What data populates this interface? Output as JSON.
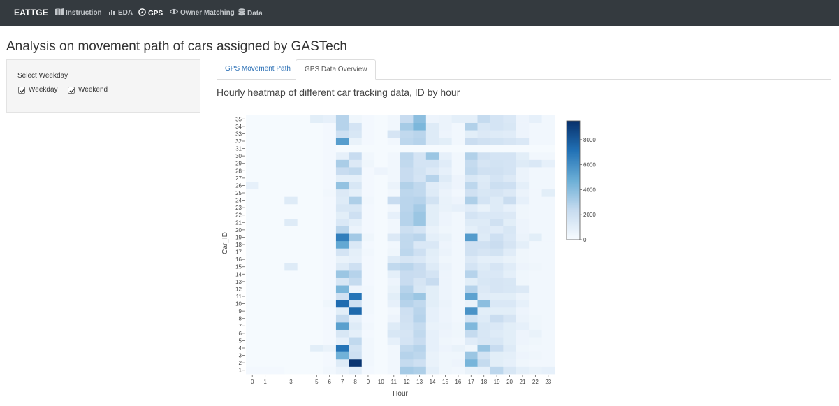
{
  "navbar": {
    "brand": "EATTGE",
    "items": [
      {
        "label": "Instruction",
        "icon": "map-icon",
        "active": false
      },
      {
        "label": "EDA",
        "icon": "chart-bar-icon",
        "active": false
      },
      {
        "label": "GPS",
        "icon": "compass-icon",
        "active": true
      },
      {
        "label": "Owner Matching",
        "icon": "eye-icon",
        "active": false
      },
      {
        "label": "Data",
        "icon": "database-icon",
        "active": false
      }
    ]
  },
  "page_title": "Analysis on movement path of cars assigned by GASTech",
  "sidebar": {
    "label": "Select Weekday",
    "checkboxes": [
      {
        "label": "Weekday",
        "checked": true
      },
      {
        "label": "Weekend",
        "checked": true
      }
    ]
  },
  "tabs": [
    {
      "label": "GPS Movement Path",
      "active": false
    },
    {
      "label": "GPS Data Overview",
      "active": true
    }
  ],
  "chart_data": {
    "type": "heatmap",
    "title": "Hourly heatmap of different car tracking data, ID by hour",
    "xlabel": "Hour",
    "ylabel": "Car_ID",
    "x": [
      0,
      1,
      2,
      3,
      4,
      5,
      6,
      7,
      8,
      9,
      10,
      11,
      12,
      13,
      14,
      15,
      16,
      17,
      18,
      19,
      20,
      21,
      22,
      23
    ],
    "x_ticks": [
      0,
      1,
      3,
      5,
      6,
      7,
      8,
      9,
      10,
      11,
      12,
      13,
      14,
      15,
      16,
      17,
      18,
      19,
      20,
      21,
      22,
      23
    ],
    "y": [
      1,
      2,
      3,
      4,
      5,
      6,
      7,
      8,
      9,
      10,
      11,
      12,
      13,
      14,
      15,
      16,
      17,
      18,
      19,
      20,
      21,
      22,
      23,
      24,
      25,
      26,
      27,
      28,
      29,
      30,
      31,
      32,
      33,
      34,
      35
    ],
    "zrange": [
      0,
      9500
    ],
    "colorbar_ticks": [
      0,
      2000,
      4000,
      6000,
      8000
    ],
    "colorscale": [
      "#f7fbff",
      "#c6dbef",
      "#6baed6",
      "#2171b5",
      "#08306b"
    ],
    "z": [
      [
        200,
        200,
        200,
        100,
        100,
        100,
        300,
        600,
        900,
        200,
        100,
        300,
        3200,
        3000,
        900,
        400,
        300,
        700,
        800,
        2600,
        1500,
        900,
        700,
        800
      ],
      [
        100,
        100,
        100,
        100,
        100,
        100,
        200,
        1200,
        9300,
        300,
        100,
        300,
        2400,
        2000,
        700,
        400,
        500,
        4400,
        2400,
        1000,
        800,
        400,
        300,
        300
      ],
      [
        100,
        100,
        100,
        100,
        100,
        100,
        200,
        4600,
        2000,
        300,
        100,
        300,
        2800,
        2600,
        700,
        400,
        400,
        3500,
        1800,
        1000,
        900,
        500,
        400,
        300
      ],
      [
        100,
        100,
        100,
        100,
        100,
        1000,
        700,
        7000,
        1800,
        300,
        100,
        300,
        2500,
        2800,
        800,
        500,
        700,
        400,
        3600,
        2300,
        1200,
        400,
        300,
        300
      ],
      [
        100,
        100,
        100,
        100,
        100,
        100,
        200,
        800,
        2500,
        300,
        100,
        800,
        1700,
        2300,
        800,
        400,
        300,
        1100,
        1500,
        1500,
        1000,
        500,
        400,
        300
      ],
      [
        100,
        100,
        100,
        100,
        100,
        100,
        200,
        1500,
        900,
        200,
        100,
        1500,
        1600,
        2500,
        800,
        500,
        400,
        2400,
        1500,
        1200,
        1000,
        500,
        700,
        300
      ],
      [
        100,
        100,
        100,
        100,
        100,
        100,
        200,
        5300,
        1200,
        300,
        100,
        1200,
        1800,
        2400,
        700,
        600,
        400,
        4200,
        1500,
        1400,
        1000,
        800,
        400,
        300
      ],
      [
        100,
        100,
        100,
        100,
        100,
        100,
        200,
        2400,
        800,
        200,
        100,
        500,
        1900,
        2800,
        800,
        500,
        300,
        1800,
        1200,
        2200,
        1600,
        600,
        400,
        300
      ],
      [
        100,
        100,
        100,
        100,
        100,
        100,
        200,
        1000,
        7400,
        300,
        100,
        300,
        2000,
        2700,
        800,
        500,
        300,
        5800,
        1000,
        1000,
        1000,
        500,
        300,
        300
      ],
      [
        100,
        100,
        100,
        100,
        100,
        100,
        400,
        7300,
        2000,
        300,
        100,
        800,
        2800,
        2500,
        1000,
        600,
        300,
        700,
        3900,
        1400,
        1400,
        800,
        300,
        300
      ],
      [
        100,
        100,
        100,
        100,
        100,
        100,
        200,
        1900,
        7000,
        300,
        100,
        1000,
        3100,
        3500,
        1000,
        500,
        300,
        5200,
        1100,
        1000,
        1000,
        600,
        300,
        300
      ],
      [
        100,
        100,
        100,
        100,
        100,
        100,
        200,
        4300,
        500,
        300,
        100,
        700,
        2800,
        1500,
        1000,
        500,
        300,
        2800,
        1300,
        1600,
        1500,
        1300,
        300,
        300
      ],
      [
        100,
        100,
        100,
        100,
        100,
        100,
        200,
        1500,
        2400,
        200,
        100,
        500,
        2300,
        1600,
        2300,
        500,
        300,
        1000,
        1500,
        1600,
        1500,
        400,
        300,
        300
      ],
      [
        100,
        100,
        100,
        100,
        100,
        100,
        200,
        3500,
        2800,
        200,
        100,
        900,
        2300,
        2200,
        1700,
        500,
        300,
        2800,
        1400,
        1400,
        900,
        400,
        300,
        300
      ],
      [
        100,
        100,
        100,
        1200,
        100,
        100,
        200,
        1200,
        2000,
        200,
        100,
        2500,
        2700,
        2300,
        1200,
        600,
        300,
        1700,
        1200,
        1600,
        1100,
        500,
        400,
        300
      ],
      [
        100,
        100,
        100,
        100,
        100,
        100,
        200,
        700,
        800,
        200,
        100,
        1200,
        1600,
        1400,
        900,
        400,
        300,
        1300,
        900,
        900,
        700,
        400,
        300,
        300
      ],
      [
        100,
        100,
        100,
        100,
        100,
        100,
        200,
        1700,
        900,
        300,
        100,
        400,
        2600,
        2000,
        1000,
        600,
        300,
        1900,
        1600,
        1800,
        1100,
        400,
        300,
        300
      ],
      [
        100,
        100,
        100,
        100,
        100,
        100,
        200,
        5000,
        1400,
        200,
        100,
        300,
        2500,
        1400,
        1400,
        500,
        300,
        1900,
        1900,
        2200,
        1600,
        900,
        300,
        300
      ],
      [
        100,
        100,
        100,
        100,
        100,
        100,
        200,
        6600,
        3300,
        400,
        100,
        1300,
        2500,
        2700,
        900,
        700,
        300,
        5500,
        1200,
        2000,
        1400,
        600,
        1000,
        300
      ],
      [
        100,
        100,
        100,
        100,
        100,
        100,
        200,
        2700,
        600,
        200,
        100,
        300,
        2100,
        1700,
        700,
        400,
        300,
        900,
        1300,
        1100,
        1500,
        500,
        300,
        300
      ],
      [
        100,
        100,
        100,
        1200,
        100,
        100,
        200,
        1400,
        900,
        200,
        100,
        300,
        2800,
        3500,
        1000,
        500,
        300,
        1200,
        1200,
        1900,
        1000,
        500,
        300,
        300
      ],
      [
        100,
        100,
        100,
        100,
        100,
        100,
        200,
        1000,
        2000,
        200,
        100,
        800,
        2800,
        3500,
        1000,
        500,
        300,
        1700,
        1400,
        1400,
        1300,
        400,
        300,
        300
      ],
      [
        100,
        100,
        100,
        100,
        100,
        100,
        200,
        1500,
        1500,
        200,
        100,
        300,
        2700,
        3200,
        1000,
        700,
        800,
        1100,
        700,
        1200,
        800,
        400,
        300,
        300
      ],
      [
        100,
        100,
        100,
        1200,
        100,
        100,
        200,
        1200,
        3000,
        300,
        100,
        2300,
        2700,
        2800,
        1800,
        700,
        500,
        3000,
        1700,
        1200,
        2200,
        800,
        300,
        300
      ],
      [
        100,
        100,
        100,
        100,
        100,
        100,
        300,
        1300,
        900,
        200,
        100,
        300,
        2600,
        2500,
        1200,
        600,
        300,
        1900,
        1500,
        1600,
        1300,
        600,
        300,
        1000
      ],
      [
        800,
        100,
        100,
        100,
        100,
        100,
        200,
        3700,
        1500,
        200,
        100,
        600,
        2900,
        2500,
        1100,
        800,
        500,
        2600,
        1300,
        2100,
        2000,
        900,
        300,
        300
      ],
      [
        100,
        100,
        100,
        100,
        100,
        100,
        200,
        900,
        900,
        200,
        100,
        300,
        2300,
        1700,
        2800,
        1200,
        500,
        1500,
        1200,
        1700,
        1300,
        600,
        300,
        300
      ],
      [
        100,
        100,
        100,
        100,
        100,
        100,
        200,
        2300,
        2500,
        200,
        500,
        300,
        2300,
        1800,
        1300,
        800,
        300,
        2500,
        1900,
        1900,
        1700,
        600,
        300,
        300
      ],
      [
        100,
        100,
        100,
        100,
        100,
        100,
        200,
        3100,
        1300,
        400,
        100,
        300,
        2500,
        1700,
        1700,
        1100,
        300,
        2400,
        1600,
        1800,
        1700,
        1200,
        1400,
        800
      ],
      [
        100,
        100,
        100,
        100,
        100,
        100,
        200,
        800,
        2300,
        300,
        100,
        300,
        2600,
        1700,
        3500,
        800,
        300,
        2900,
        1900,
        1700,
        1700,
        1000,
        300,
        300
      ],
      [
        100,
        100,
        100,
        100,
        100,
        100,
        200,
        100,
        100,
        100,
        100,
        100,
        100,
        100,
        100,
        100,
        100,
        100,
        100,
        100,
        100,
        100,
        100,
        100
      ],
      [
        100,
        100,
        100,
        100,
        100,
        100,
        200,
        5400,
        700,
        200,
        100,
        300,
        2600,
        2800,
        1200,
        1000,
        300,
        2200,
        1900,
        1800,
        1600,
        1400,
        300,
        300
      ],
      [
        100,
        100,
        100,
        100,
        100,
        100,
        200,
        2000,
        1500,
        200,
        100,
        1600,
        2500,
        2700,
        1200,
        500,
        300,
        1000,
        1300,
        1200,
        1100,
        500,
        300,
        300
      ],
      [
        100,
        100,
        100,
        100,
        100,
        100,
        200,
        2800,
        1700,
        200,
        100,
        300,
        3200,
        4300,
        1200,
        600,
        300,
        2900,
        1500,
        1700,
        1500,
        500,
        300,
        300
      ],
      [
        100,
        100,
        100,
        100,
        100,
        1000,
        800,
        2800,
        400,
        200,
        100,
        300,
        2300,
        3900,
        500,
        600,
        900,
        900,
        2400,
        1700,
        1400,
        500,
        800,
        300
      ]
    ]
  }
}
